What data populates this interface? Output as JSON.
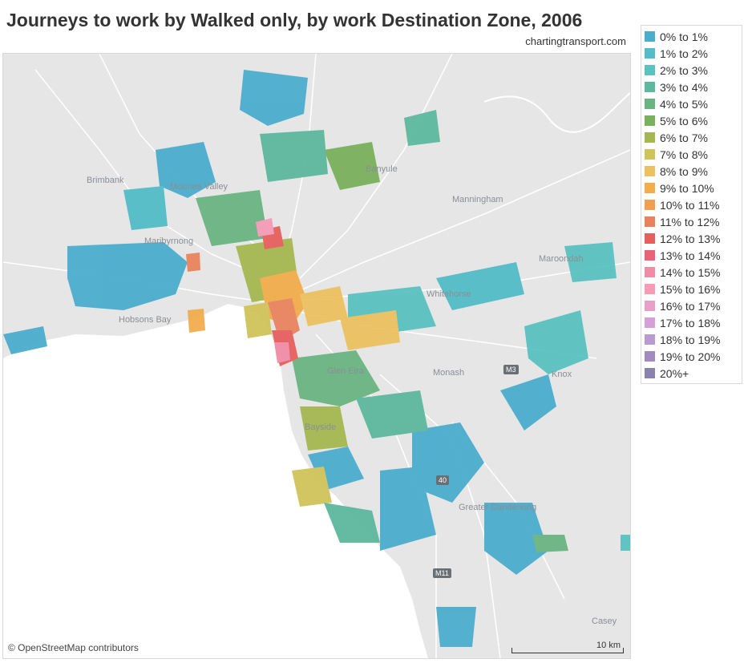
{
  "title": "Journeys to work by Walked only, by work Destination Zone, 2006",
  "source": "chartingtransport.com",
  "attribution": "© OpenStreetMap contributors",
  "scale_label": "10 km",
  "map_labels": [
    "Brimbank",
    "Moonee Valley",
    "Maribyrnong",
    "Hobsons Bay",
    "Banyule",
    "Manningham",
    "Maroondah",
    "Whitehorse",
    "Monash",
    "Glen Eira",
    "Bayside",
    "Greater Dandenong",
    "Knox",
    "Casey"
  ],
  "road_shields": [
    "M3",
    "M11",
    "40"
  ],
  "legend": [
    {
      "label": "0% to 1%",
      "color": "#4badcc"
    },
    {
      "label": "1% to 2%",
      "color": "#53bcc8"
    },
    {
      "label": "2% to 3%",
      "color": "#5ac2c0"
    },
    {
      "label": "3% to 4%",
      "color": "#5cb89e"
    },
    {
      "label": "4% to 5%",
      "color": "#6ab482"
    },
    {
      "label": "5% to 6%",
      "color": "#7ab15c"
    },
    {
      "label": "6% to 7%",
      "color": "#a5b850"
    },
    {
      "label": "7% to 8%",
      "color": "#cfc45a"
    },
    {
      "label": "8% to 9%",
      "color": "#ecc260"
    },
    {
      "label": "9% to 10%",
      "color": "#f2ad4d"
    },
    {
      "label": "10% to 11%",
      "color": "#f0a050"
    },
    {
      "label": "11% to 12%",
      "color": "#e9835f"
    },
    {
      "label": "12% to 13%",
      "color": "#e65f5f"
    },
    {
      "label": "13% to 14%",
      "color": "#ea6276"
    },
    {
      "label": "14% to 15%",
      "color": "#f18ca7"
    },
    {
      "label": "15% to 16%",
      "color": "#f49cb8"
    },
    {
      "label": "16% to 17%",
      "color": "#e9a0c8"
    },
    {
      "label": "17% to 18%",
      "color": "#d79fd8"
    },
    {
      "label": "18% to 19%",
      "color": "#b99bd2"
    },
    {
      "label": "19% to 20%",
      "color": "#a48bbf"
    },
    {
      "label": "20%+",
      "color": "#8b82ad"
    }
  ]
}
